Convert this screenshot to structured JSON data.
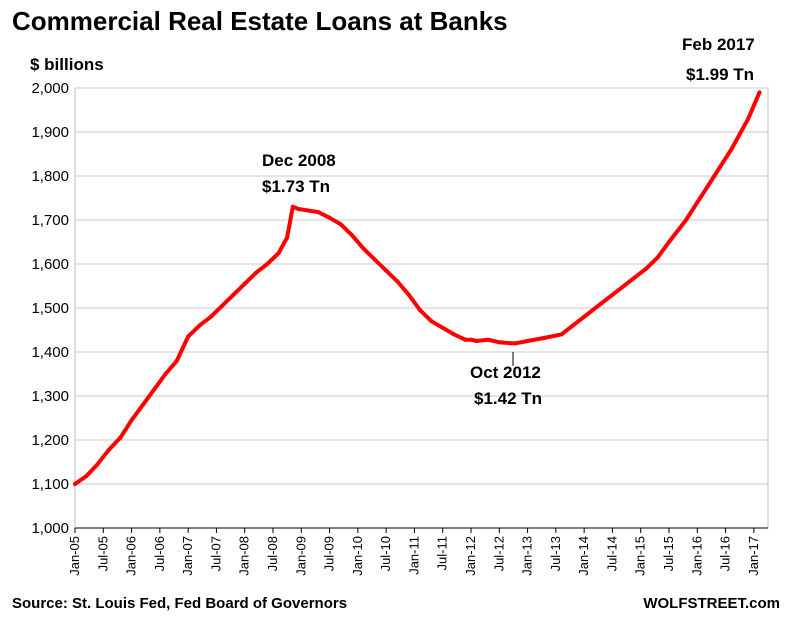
{
  "chart_data": {
    "type": "line",
    "title": "Commercial Real Estate Loans at Banks",
    "ylabel": "$ billions",
    "xlabel": "",
    "ylim": [
      1000,
      2000
    ],
    "yticks": [
      "1,000",
      "1,100",
      "1,200",
      "1,300",
      "1,400",
      "1,500",
      "1,600",
      "1,700",
      "1,800",
      "1,900",
      "2,000"
    ],
    "xlim": [
      2005.0,
      2017.25
    ],
    "xticks": [
      "Jan-05",
      "Jul-05",
      "Jan-06",
      "Jul-06",
      "Jan-07",
      "Jul-07",
      "Jan-08",
      "Jul-08",
      "Jan-09",
      "Jul-09",
      "Jan-10",
      "Jul-10",
      "Jan-11",
      "Jul-11",
      "Jan-12",
      "Jul-12",
      "Jan-13",
      "Jul-13",
      "Jan-14",
      "Jul-14",
      "Jan-15",
      "Jul-15",
      "Jan-16",
      "Jul-16",
      "Jan-17"
    ],
    "grid": "horizontal",
    "color": "#ff0000",
    "series": [
      {
        "x": [
          2005.0,
          2005.2,
          2005.4,
          2005.6,
          2005.8,
          2006.0,
          2006.2,
          2006.4,
          2006.6,
          2006.8,
          2007.0,
          2007.2,
          2007.4,
          2007.6,
          2007.8,
          2008.0,
          2008.2,
          2008.4,
          2008.6,
          2008.75,
          2008.85,
          2008.95,
          2009.1,
          2009.3,
          2009.5,
          2009.7,
          2009.9,
          2010.1,
          2010.3,
          2010.5,
          2010.7,
          2010.9,
          2011.1,
          2011.3,
          2011.5,
          2011.7,
          2011.9,
          2012.0,
          2012.1,
          2012.3,
          2012.5,
          2012.7,
          2012.8,
          2013.0,
          2013.3,
          2013.6,
          2013.8,
          2014.0,
          2014.3,
          2014.6,
          2014.9,
          2015.1,
          2015.3,
          2015.5,
          2015.8,
          2016.0,
          2016.3,
          2016.6,
          2016.9,
          2017.1
        ],
        "values": [
          1100,
          1118,
          1145,
          1178,
          1205,
          1245,
          1280,
          1315,
          1350,
          1380,
          1435,
          1460,
          1480,
          1505,
          1530,
          1555,
          1580,
          1600,
          1625,
          1660,
          1730,
          1725,
          1722,
          1718,
          1705,
          1690,
          1665,
          1635,
          1610,
          1585,
          1560,
          1530,
          1495,
          1470,
          1455,
          1440,
          1428,
          1428,
          1425,
          1428,
          1422,
          1420,
          1420,
          1425,
          1432,
          1440,
          1460,
          1480,
          1510,
          1540,
          1570,
          1590,
          1615,
          1650,
          1700,
          1740,
          1800,
          1860,
          1930,
          1990
        ]
      }
    ],
    "annotations": [
      {
        "line1": "Feb 2017",
        "line2": "$1.99 Tn"
      },
      {
        "line1": "Dec 2008",
        "line2": "$1.73 Tn"
      },
      {
        "line1": "Oct 2012",
        "line2": "$1.42 Tn"
      }
    ],
    "source": "Source: St. Louis Fed, Fed Board of Governors",
    "brand": "WOLFSTREET.com"
  }
}
